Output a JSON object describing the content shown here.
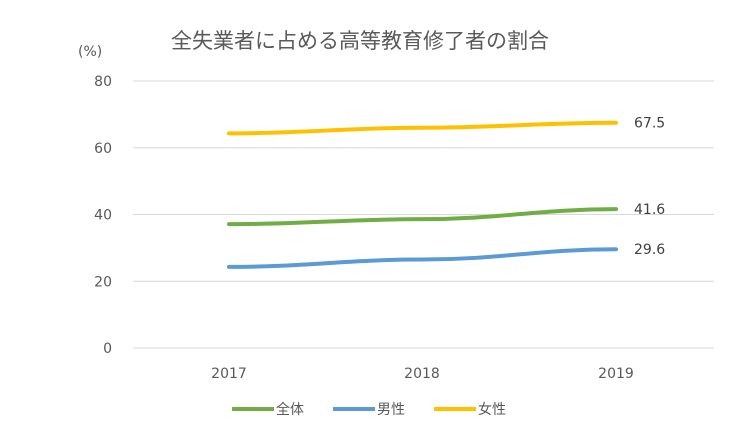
{
  "chart_data": {
    "type": "line",
    "title": "全失業者に占める高等教育修了者の割合",
    "unit_label": "(%)",
    "xlabel": "",
    "ylabel": "",
    "categories": [
      "2017",
      "2018",
      "2019"
    ],
    "ylim": [
      0,
      80
    ],
    "yticks": [
      0,
      20,
      40,
      60,
      80
    ],
    "grid": true,
    "legend_position": "bottom",
    "series": [
      {
        "name": "全体",
        "color": "#70AD47",
        "values": [
          37.1,
          38.6,
          41.6
        ],
        "end_label": "41.6"
      },
      {
        "name": "男性",
        "color": "#5B9BD5",
        "values": [
          24.3,
          26.5,
          29.6
        ],
        "end_label": "29.6"
      },
      {
        "name": "女性",
        "color": "#FFC000",
        "values": [
          64.3,
          66.0,
          67.5
        ],
        "end_label": "67.5"
      }
    ]
  }
}
